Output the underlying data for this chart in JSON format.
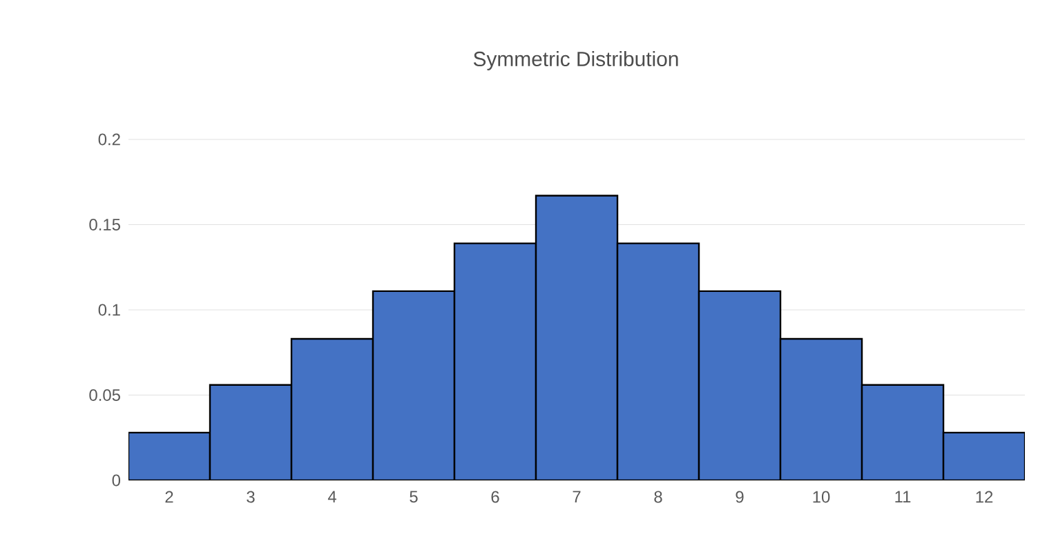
{
  "chart_data": {
    "type": "bar",
    "title": "Symmetric Distribution",
    "categories": [
      "2",
      "3",
      "4",
      "5",
      "6",
      "7",
      "8",
      "9",
      "10",
      "11",
      "12"
    ],
    "values": [
      0.028,
      0.056,
      0.083,
      0.111,
      0.139,
      0.167,
      0.139,
      0.111,
      0.083,
      0.056,
      0.028
    ],
    "color": "#4472c4",
    "ylim": [
      0,
      0.2
    ],
    "yticks": [
      0,
      0.05,
      0.1,
      0.15,
      0.2
    ],
    "grid": "y"
  }
}
